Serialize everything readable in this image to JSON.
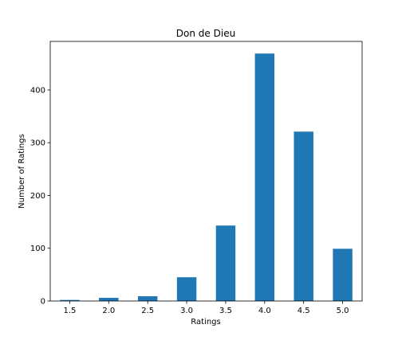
{
  "chart_data": {
    "type": "bar",
    "title": "Don de Dieu",
    "xlabel": "Ratings",
    "ylabel": "Number of Ratings",
    "categories": [
      "1.5",
      "2.0",
      "2.5",
      "3.0",
      "3.5",
      "4.0",
      "4.5",
      "5.0"
    ],
    "values": [
      2,
      6,
      9,
      45,
      143,
      469,
      321,
      99
    ],
    "ylim": [
      0,
      492
    ],
    "yticks": [
      0,
      100,
      200,
      300,
      400
    ],
    "grid": false,
    "bar_color": "#1f77b4"
  }
}
